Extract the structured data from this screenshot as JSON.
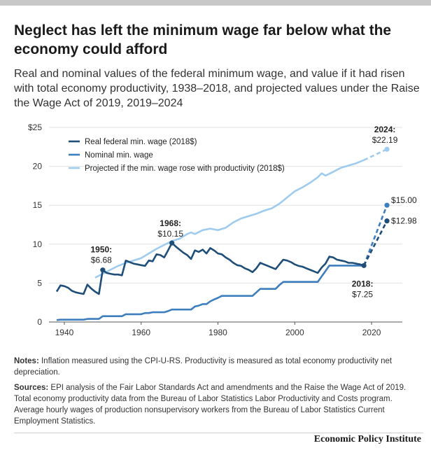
{
  "title": "Neglect has left the minimum wage far below what the economy could afford",
  "subtitle": "Real and nominal values of the federal minimum wage, and value if it had risen with total economy productivity, 1938–2018, and projected values under the Raise the Wage Act of 2019, 2019–2024",
  "notes": {
    "label": "Notes:",
    "text": " Inflation measured using the CPI-U-RS. Productivity is measured as total economy productivity net depreciation."
  },
  "sources": {
    "label": "Sources:",
    "text": " EPI analysis of the Fair Labor Standards Act and amendments and the Raise the Wage Act of 2019. Total economy productivity data from the Bureau of Labor Statistics Labor Productivity and Costs program. Average hourly wages of production nonsupervisory workers from the Bureau of Labor Statistics Current Employment Statistics."
  },
  "brand": "Economic Policy Institute",
  "colors": {
    "real": "#1f4e79",
    "nominal": "#3d7ebf",
    "productivity": "#9ecbee"
  },
  "chart_data": {
    "type": "line",
    "xlim": [
      1936,
      2028
    ],
    "ylim": [
      0,
      25
    ],
    "x_ticks": [
      1940,
      1960,
      1980,
      2000,
      2020
    ],
    "y_ticks": [
      {
        "value": 0,
        "label": "0"
      },
      {
        "value": 5,
        "label": "5"
      },
      {
        "value": 10,
        "label": "10"
      },
      {
        "value": 15,
        "label": "15"
      },
      {
        "value": 20,
        "label": "20"
      },
      {
        "value": 25,
        "label": "$25"
      }
    ],
    "grid": "horizontal",
    "legend_position": "top-left",
    "series": [
      {
        "name": "Real federal min. wage (2018$)",
        "color_key": "real",
        "x": [
          1938,
          1939,
          1940,
          1941,
          1942,
          1943,
          1944,
          1945,
          1946,
          1947,
          1948,
          1949,
          1950,
          1951,
          1952,
          1953,
          1954,
          1955,
          1956,
          1957,
          1958,
          1959,
          1960,
          1961,
          1962,
          1963,
          1964,
          1965,
          1966,
          1967,
          1968,
          1969,
          1970,
          1971,
          1972,
          1973,
          1974,
          1975,
          1976,
          1977,
          1978,
          1979,
          1980,
          1981,
          1982,
          1983,
          1984,
          1985,
          1986,
          1987,
          1988,
          1989,
          1990,
          1991,
          1992,
          1993,
          1994,
          1995,
          1996,
          1997,
          1998,
          1999,
          2000,
          2001,
          2002,
          2003,
          2004,
          2005,
          2006,
          2007,
          2008,
          2009,
          2010,
          2011,
          2012,
          2013,
          2014,
          2015,
          2016,
          2017,
          2018
        ],
        "values": [
          3.9,
          4.7,
          4.6,
          4.4,
          4.0,
          3.8,
          3.7,
          3.6,
          4.8,
          4.3,
          3.9,
          3.6,
          6.68,
          6.3,
          6.2,
          6.1,
          6.1,
          6.0,
          7.9,
          7.7,
          7.5,
          7.4,
          7.3,
          7.2,
          7.9,
          7.8,
          8.7,
          8.6,
          8.3,
          9.2,
          10.15,
          9.7,
          9.3,
          8.9,
          8.6,
          8.1,
          9.2,
          9.0,
          9.3,
          8.8,
          9.5,
          9.2,
          8.8,
          8.7,
          8.3,
          8.0,
          7.6,
          7.3,
          7.2,
          6.9,
          6.7,
          6.4,
          6.9,
          7.6,
          7.4,
          7.2,
          7.0,
          6.8,
          7.4,
          8.0,
          7.9,
          7.7,
          7.4,
          7.2,
          7.1,
          6.9,
          6.7,
          6.5,
          6.3,
          7.0,
          7.5,
          8.4,
          8.3,
          8.0,
          7.9,
          7.8,
          7.6,
          7.6,
          7.5,
          7.4,
          7.25
        ],
        "projected": {
          "x": [
            2018,
            2024
          ],
          "values": [
            7.25,
            12.98
          ]
        }
      },
      {
        "name": "Nominal min. wage",
        "color_key": "nominal",
        "x": [
          1938,
          1939,
          1945,
          1946,
          1949,
          1950,
          1955,
          1956,
          1960,
          1961,
          1962,
          1963,
          1966,
          1967,
          1968,
          1973,
          1974,
          1975,
          1976,
          1977,
          1978,
          1979,
          1980,
          1981,
          1989,
          1990,
          1991,
          1995,
          1996,
          1997,
          2006,
          2007,
          2008,
          2009,
          2018
        ],
        "values": [
          0.25,
          0.3,
          0.3,
          0.4,
          0.4,
          0.75,
          0.75,
          1.0,
          1.0,
          1.15,
          1.15,
          1.25,
          1.25,
          1.4,
          1.6,
          1.6,
          2.0,
          2.1,
          2.3,
          2.3,
          2.65,
          2.9,
          3.1,
          3.35,
          3.35,
          3.8,
          4.25,
          4.25,
          4.75,
          5.15,
          5.15,
          5.85,
          6.55,
          7.25,
          7.25
        ],
        "projected": {
          "x": [
            2018,
            2024
          ],
          "values": [
            7.25,
            15.0
          ]
        }
      },
      {
        "name": "Projected if the min. wage rose with productivity (2018$)",
        "color_key": "productivity",
        "x": [
          1948,
          1950,
          1952,
          1954,
          1956,
          1958,
          1960,
          1962,
          1964,
          1966,
          1968,
          1970,
          1972,
          1973,
          1974,
          1976,
          1978,
          1980,
          1982,
          1984,
          1986,
          1988,
          1990,
          1992,
          1994,
          1996,
          1998,
          2000,
          2002,
          2004,
          2006,
          2007,
          2008,
          2010,
          2012,
          2014,
          2016,
          2018
        ],
        "values": [
          5.7,
          6.2,
          6.7,
          7.2,
          7.6,
          7.9,
          8.2,
          8.8,
          9.4,
          9.9,
          10.4,
          10.7,
          11.3,
          11.5,
          11.3,
          11.8,
          12.0,
          11.8,
          12.1,
          12.8,
          13.3,
          13.6,
          13.9,
          14.3,
          14.6,
          15.2,
          16.0,
          16.8,
          17.3,
          17.9,
          18.6,
          19.1,
          18.8,
          19.3,
          19.8,
          20.1,
          20.4,
          20.8
        ],
        "projected": {
          "x": [
            2018,
            2024
          ],
          "values": [
            20.8,
            22.19
          ]
        }
      }
    ],
    "annotations": [
      {
        "bold": "1950:",
        "value": "$6.68"
      },
      {
        "bold": "1968:",
        "value": "$10.15"
      },
      {
        "bold": "2018:",
        "value": "$7.25"
      },
      {
        "bold": "2024:",
        "value": "$22.19"
      },
      {
        "bold": "",
        "value": "$15.00"
      },
      {
        "bold": "",
        "value": "$12.98"
      }
    ]
  }
}
